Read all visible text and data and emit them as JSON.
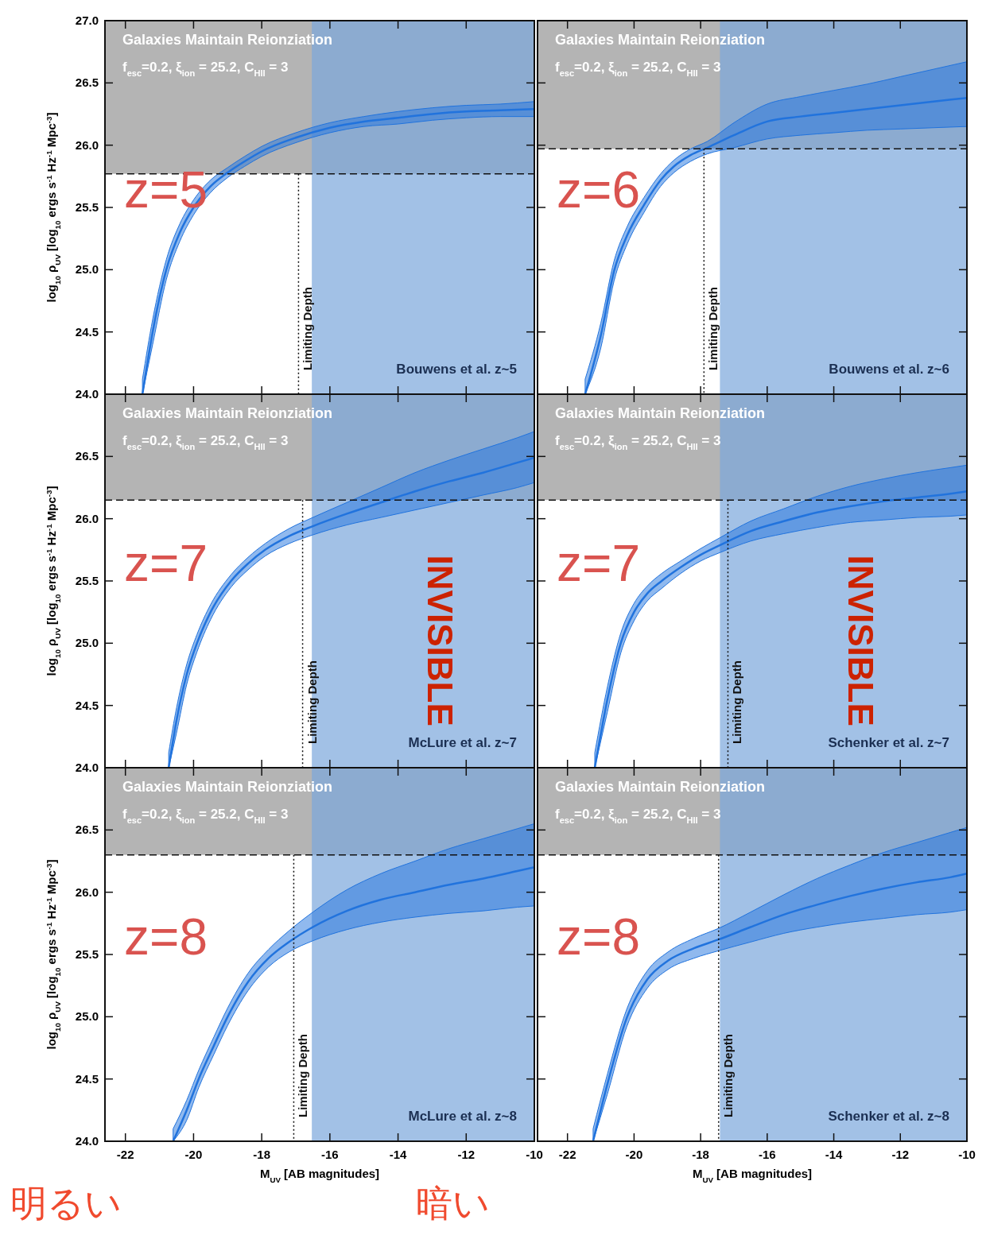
{
  "chart_data": [
    {
      "type": "line",
      "title": "z=5",
      "tick_labels": "y",
      "ylabel": "log$_{10}$ ρ$_{UV}$ [log$_{10}$ ergs s$^{-1}$ Hz$^{-1}$ Mpc$^{-3}$]",
      "xlim": [
        -22.6,
        -10
      ],
      "ylim": [
        24,
        27
      ],
      "xticks": [
        -22,
        -20,
        -18,
        -16,
        -14,
        -12,
        -10
      ],
      "yticks": [
        {
          "value": 24,
          "label": "24.0"
        },
        {
          "value": 24.5,
          "label": "24.5"
        },
        {
          "value": 25,
          "label": "25.0"
        },
        {
          "value": 25.5,
          "label": "25.5"
        },
        {
          "value": 26,
          "label": "26.0"
        },
        {
          "value": 26.5,
          "label": "26.5"
        },
        {
          "value": 27,
          "label": "27.0"
        }
      ],
      "series": [
        {
          "color": "#2173dd",
          "x": [
            -21.5,
            -21.2,
            -20.8,
            -20.4,
            -20,
            -19.5,
            -19,
            -18.5,
            -18,
            -17,
            -16,
            -15,
            -14,
            -13,
            -12,
            -11,
            -10
          ],
          "values": [
            24.0,
            24.5,
            25.0,
            25.3,
            25.5,
            25.67,
            25.78,
            25.87,
            25.95,
            26.06,
            26.14,
            26.19,
            26.22,
            26.25,
            26.27,
            26.28,
            26.29
          ],
          "upper": [
            24.12,
            24.6,
            25.08,
            25.37,
            25.56,
            25.72,
            25.82,
            25.91,
            25.99,
            26.1,
            26.18,
            26.23,
            26.27,
            26.3,
            26.32,
            26.33,
            26.35
          ],
          "lower": [
            24.0,
            24.4,
            24.92,
            25.23,
            25.44,
            25.62,
            25.74,
            25.83,
            25.91,
            26.02,
            26.1,
            26.15,
            26.17,
            26.2,
            26.22,
            26.23,
            26.23
          ]
        }
      ],
      "bands": [
        {
          "axis": "y",
          "from": 25.77,
          "to": 27,
          "label": "Galaxies Maintain Reionziation",
          "color": "#b4b4b4"
        },
        {
          "axis": "x",
          "from": -16.53,
          "to": -10,
          "label": null,
          "color": "#7aa6dc"
        }
      ],
      "ref_lines": [
        {
          "axis": "y",
          "value": 25.77,
          "label": null,
          "line_style": "dashed"
        },
        {
          "axis": "x",
          "value": -16.92,
          "label": "Limiting Depth",
          "line_style": "dotted"
        }
      ],
      "annotations": [
        "f$_{esc}$=0.2, ξ$_{ion}$ = 25.2, C$_{HII}$ = 3",
        "Bouwens et al. z~5"
      ]
    },
    {
      "type": "line",
      "title": "z=6",
      "tick_labels": false,
      "xlim": [
        -22.9,
        -10
      ],
      "ylim": [
        24,
        27
      ],
      "xticks": [
        -22,
        -20,
        -18,
        -16,
        -14,
        -12,
        -10
      ],
      "yticks": [
        24,
        24.5,
        25,
        25.5,
        26,
        26.5,
        27
      ],
      "series": [
        {
          "color": "#2173dd",
          "x": [
            -21.47,
            -21,
            -20.6,
            -20.2,
            -19.7,
            -19.2,
            -18.8,
            -18.3,
            -17.8,
            -17,
            -16,
            -15,
            -14,
            -13,
            -12,
            -11,
            -10
          ],
          "values": [
            24.0,
            24.47,
            24.99,
            25.28,
            25.52,
            25.72,
            25.83,
            25.92,
            25.98,
            26.08,
            26.19,
            26.23,
            26.26,
            26.29,
            26.32,
            26.35,
            26.38
          ],
          "upper": [
            24.12,
            24.57,
            25.07,
            25.35,
            25.58,
            25.77,
            25.88,
            25.97,
            26.03,
            26.18,
            26.33,
            26.39,
            26.44,
            26.49,
            26.55,
            26.61,
            26.67
          ],
          "lower": [
            24.0,
            24.37,
            24.91,
            25.21,
            25.46,
            25.67,
            25.78,
            25.87,
            25.93,
            25.98,
            26.05,
            26.08,
            26.1,
            26.12,
            26.13,
            26.14,
            26.15
          ]
        }
      ],
      "bands": [
        {
          "axis": "y",
          "from": 25.97,
          "to": 27,
          "label": "Galaxies Maintain Reionziation",
          "color": "#b4b4b4"
        },
        {
          "axis": "x",
          "from": -17.42,
          "to": -10,
          "label": null,
          "color": "#7aa6dc"
        }
      ],
      "ref_lines": [
        {
          "axis": "y",
          "value": 25.97,
          "label": null,
          "line_style": "dashed"
        },
        {
          "axis": "x",
          "value": -17.9,
          "label": "Limiting Depth",
          "line_style": "dotted"
        }
      ],
      "annotations": [
        "f$_{esc}$=0.2, ξ$_{ion}$ = 25.2, C$_{HII}$ = 3",
        "Bouwens et al. z~6"
      ]
    },
    {
      "type": "line",
      "title": "z=7",
      "tick_labels": "y",
      "ylabel": "log$_{10}$ ρ$_{UV}$ [log$_{10}$ ergs s$^{-1}$ Hz$^{-1}$ Mpc$^{-3}$]",
      "xlim": [
        -22.6,
        -10
      ],
      "ylim": [
        24,
        27
      ],
      "xticks": [
        -22,
        -20,
        -18,
        -16,
        -14,
        -12,
        -10
      ],
      "yticks": [
        {
          "value": 24,
          "label": "24.0"
        },
        {
          "value": 24.5,
          "label": "24.5"
        },
        {
          "value": 25,
          "label": "25.0"
        },
        {
          "value": 25.5,
          "label": "25.5"
        },
        {
          "value": 26,
          "label": "26.0"
        },
        {
          "value": 26.5,
          "label": "26.5"
        },
        {
          "value": 27,
          "label": null
        }
      ],
      "series": [
        {
          "color": "#2173dd",
          "x": [
            -20.73,
            -20.5,
            -20.2,
            -19.9,
            -19.5,
            -18.9,
            -18.4,
            -17.9,
            -17.2,
            -16.5,
            -15.5,
            -14.5,
            -13.5,
            -12.5,
            -11.5,
            -10.5,
            -10
          ],
          "values": [
            24.0,
            24.38,
            24.75,
            25.0,
            25.25,
            25.5,
            25.64,
            25.75,
            25.86,
            25.94,
            26.04,
            26.13,
            26.22,
            26.3,
            26.37,
            26.45,
            26.49
          ],
          "upper": [
            24.12,
            24.48,
            24.83,
            25.07,
            25.31,
            25.55,
            25.69,
            25.8,
            25.92,
            26.01,
            26.13,
            26.25,
            26.37,
            26.47,
            26.56,
            26.65,
            26.7
          ],
          "lower": [
            24.0,
            24.28,
            24.67,
            24.93,
            25.19,
            25.45,
            25.59,
            25.7,
            25.8,
            25.87,
            25.95,
            26.01,
            26.07,
            26.13,
            26.19,
            26.25,
            26.29
          ]
        }
      ],
      "bands": [
        {
          "axis": "y",
          "from": 26.15,
          "to": 27,
          "label": "Galaxies Maintain Reionziation",
          "color": "#b4b4b4"
        },
        {
          "axis": "x",
          "from": -16.53,
          "to": -10,
          "label": "INVISIBLE",
          "color": "#7aa6dc"
        }
      ],
      "ref_lines": [
        {
          "axis": "y",
          "value": 26.15,
          "label": null,
          "line_style": "dashed"
        },
        {
          "axis": "x",
          "value": -16.8,
          "label": "Limiting Depth",
          "line_style": "dotted"
        }
      ],
      "annotations": [
        "f$_{esc}$=0.2, ξ$_{ion}$ = 25.2, C$_{HII}$ = 3",
        "McLure et al. z~7"
      ]
    },
    {
      "type": "line",
      "title": "z=7",
      "tick_labels": false,
      "xlim": [
        -22.9,
        -10
      ],
      "ylim": [
        24,
        27
      ],
      "xticks": [
        -22,
        -20,
        -18,
        -16,
        -14,
        -12,
        -10
      ],
      "yticks": [
        24,
        24.5,
        25,
        25.5,
        26,
        26.5,
        27
      ],
      "series": [
        {
          "color": "#2173dd",
          "x": [
            -21.18,
            -20.8,
            -20.4,
            -20,
            -19.6,
            -19.17,
            -18.6,
            -18,
            -17.4,
            -16.5,
            -15.5,
            -14.5,
            -13.5,
            -12.5,
            -11.5,
            -10.5,
            -10
          ],
          "values": [
            24.0,
            24.55,
            25.0,
            25.25,
            25.4,
            25.5,
            25.61,
            25.71,
            25.79,
            25.9,
            25.98,
            26.05,
            26.1,
            26.14,
            26.17,
            26.2,
            26.22
          ],
          "upper": [
            24.12,
            24.65,
            25.08,
            25.32,
            25.46,
            25.56,
            25.66,
            25.76,
            25.85,
            25.98,
            26.08,
            26.18,
            26.26,
            26.32,
            26.37,
            26.41,
            26.43
          ],
          "lower": [
            24.0,
            24.45,
            24.92,
            25.18,
            25.34,
            25.44,
            25.56,
            25.66,
            25.73,
            25.82,
            25.88,
            25.93,
            25.97,
            25.99,
            26.01,
            26.02,
            26.03
          ]
        }
      ],
      "bands": [
        {
          "axis": "y",
          "from": 26.15,
          "to": 27,
          "label": "Galaxies Maintain Reionziation",
          "color": "#b4b4b4"
        },
        {
          "axis": "x",
          "from": -17.42,
          "to": -10,
          "label": "INVISIBLE",
          "color": "#7aa6dc"
        }
      ],
      "ref_lines": [
        {
          "axis": "y",
          "value": 26.15,
          "label": null,
          "line_style": "dashed"
        },
        {
          "axis": "x",
          "value": -17.18,
          "label": "Limiting Depth",
          "line_style": "dotted"
        }
      ],
      "annotations": [
        "f$_{esc}$=0.2, ξ$_{ion}$ = 25.2, C$_{HII}$ = 3",
        "Schenker et al. z~7"
      ]
    },
    {
      "type": "line",
      "title": "z=8",
      "xlabel": "M$_{UV}$ [AB magnitudes]",
      "ylabel": "log$_{10}$ ρ$_{UV}$ [log$_{10}$ ergs s$^{-1}$ Hz$^{-1}$ Mpc$^{-3}$]",
      "xlim": [
        -22.6,
        -10
      ],
      "ylim": [
        24,
        27
      ],
      "xticks": [
        -22,
        -20,
        -18,
        -16,
        -14,
        -12,
        -10
      ],
      "yticks": [
        {
          "value": 24,
          "label": "24.0"
        },
        {
          "value": 24.5,
          "label": "24.5"
        },
        {
          "value": 25,
          "label": "25.0"
        },
        {
          "value": 25.5,
          "label": "25.5"
        },
        {
          "value": 26,
          "label": "26.0"
        },
        {
          "value": 26.5,
          "label": "26.5"
        },
        {
          "value": 27,
          "label": null
        }
      ],
      "series": [
        {
          "color": "#2173dd",
          "x": [
            -20.6,
            -20.2,
            -19.85,
            -19.4,
            -19,
            -18.4,
            -17.8,
            -17.2,
            -16.5,
            -15.5,
            -14.5,
            -13.5,
            -12.5,
            -11.5,
            -10.5,
            -10
          ],
          "values": [
            24.0,
            24.25,
            24.5,
            24.77,
            25.0,
            25.28,
            25.47,
            25.6,
            25.72,
            25.85,
            25.94,
            26.0,
            26.06,
            26.11,
            26.17,
            26.2
          ],
          "upper": [
            24.1,
            24.33,
            24.57,
            24.84,
            25.07,
            25.35,
            25.54,
            25.69,
            25.84,
            26.02,
            26.15,
            26.25,
            26.35,
            26.43,
            26.51,
            26.55
          ],
          "lower": [
            24.0,
            24.17,
            24.43,
            24.7,
            24.93,
            25.21,
            25.4,
            25.52,
            25.61,
            25.7,
            25.76,
            25.8,
            25.83,
            25.85,
            25.88,
            25.89
          ]
        }
      ],
      "bands": [
        {
          "axis": "y",
          "from": 26.3,
          "to": 27,
          "label": "Galaxies Maintain Reionziation",
          "color": "#b4b4b4"
        },
        {
          "axis": "x",
          "from": -16.53,
          "to": -10,
          "label": null,
          "color": "#7aa6dc"
        }
      ],
      "ref_lines": [
        {
          "axis": "y",
          "value": 26.3,
          "label": null,
          "line_style": "dashed"
        },
        {
          "axis": "x",
          "value": -17.06,
          "label": "Limiting Depth",
          "line_style": "dotted"
        }
      ],
      "annotations": [
        "f$_{esc}$=0.2, ξ$_{ion}$ = 25.2, C$_{HII}$ = 3",
        "McLure et al. z~8",
        "明るい",
        "暗い"
      ]
    },
    {
      "type": "line",
      "title": "z=8",
      "tick_labels": "x",
      "xlabel": "M$_{UV}$ [AB magnitudes]",
      "xlim": [
        -22.9,
        -10
      ],
      "ylim": [
        24,
        27
      ],
      "xticks": [
        -22,
        -20,
        -18,
        -16,
        -14,
        -12,
        -10
      ],
      "yticks": [
        24,
        24.5,
        25,
        25.5,
        26,
        26.5,
        27
      ],
      "series": [
        {
          "color": "#2173dd",
          "x": [
            -21.23,
            -20.8,
            -20.22,
            -19.6,
            -18.98,
            -18.2,
            -17.46,
            -16.5,
            -15.5,
            -14.5,
            -13.5,
            -12.5,
            -11.5,
            -10.5,
            -10
          ],
          "values": [
            24.0,
            24.46,
            24.99,
            25.3,
            25.45,
            25.55,
            25.62,
            25.72,
            25.82,
            25.9,
            25.97,
            26.03,
            26.08,
            26.12,
            26.15
          ],
          "upper": [
            24.1,
            24.54,
            25.06,
            25.37,
            25.52,
            25.63,
            25.71,
            25.84,
            25.98,
            26.11,
            26.22,
            26.32,
            26.4,
            26.48,
            26.52
          ],
          "lower": [
            24.0,
            24.38,
            24.92,
            25.23,
            25.38,
            25.47,
            25.53,
            25.6,
            25.67,
            25.72,
            25.76,
            25.79,
            25.82,
            25.84,
            25.86
          ]
        }
      ],
      "bands": [
        {
          "axis": "y",
          "from": 26.3,
          "to": 27,
          "label": "Galaxies Maintain Reionziation",
          "color": "#b4b4b4"
        },
        {
          "axis": "x",
          "from": -17.42,
          "to": -10,
          "label": null,
          "color": "#7aa6dc"
        }
      ],
      "ref_lines": [
        {
          "axis": "y",
          "value": 26.3,
          "label": null,
          "line_style": "dashed"
        },
        {
          "axis": "x",
          "value": -17.46,
          "label": "Limiting Depth",
          "line_style": "dotted"
        }
      ],
      "annotations": [
        "f$_{esc}$=0.2, ξ$_{ion}$ = 25.2, C$_{HII}$ = 3",
        "Schenker et al. z~8"
      ]
    }
  ]
}
